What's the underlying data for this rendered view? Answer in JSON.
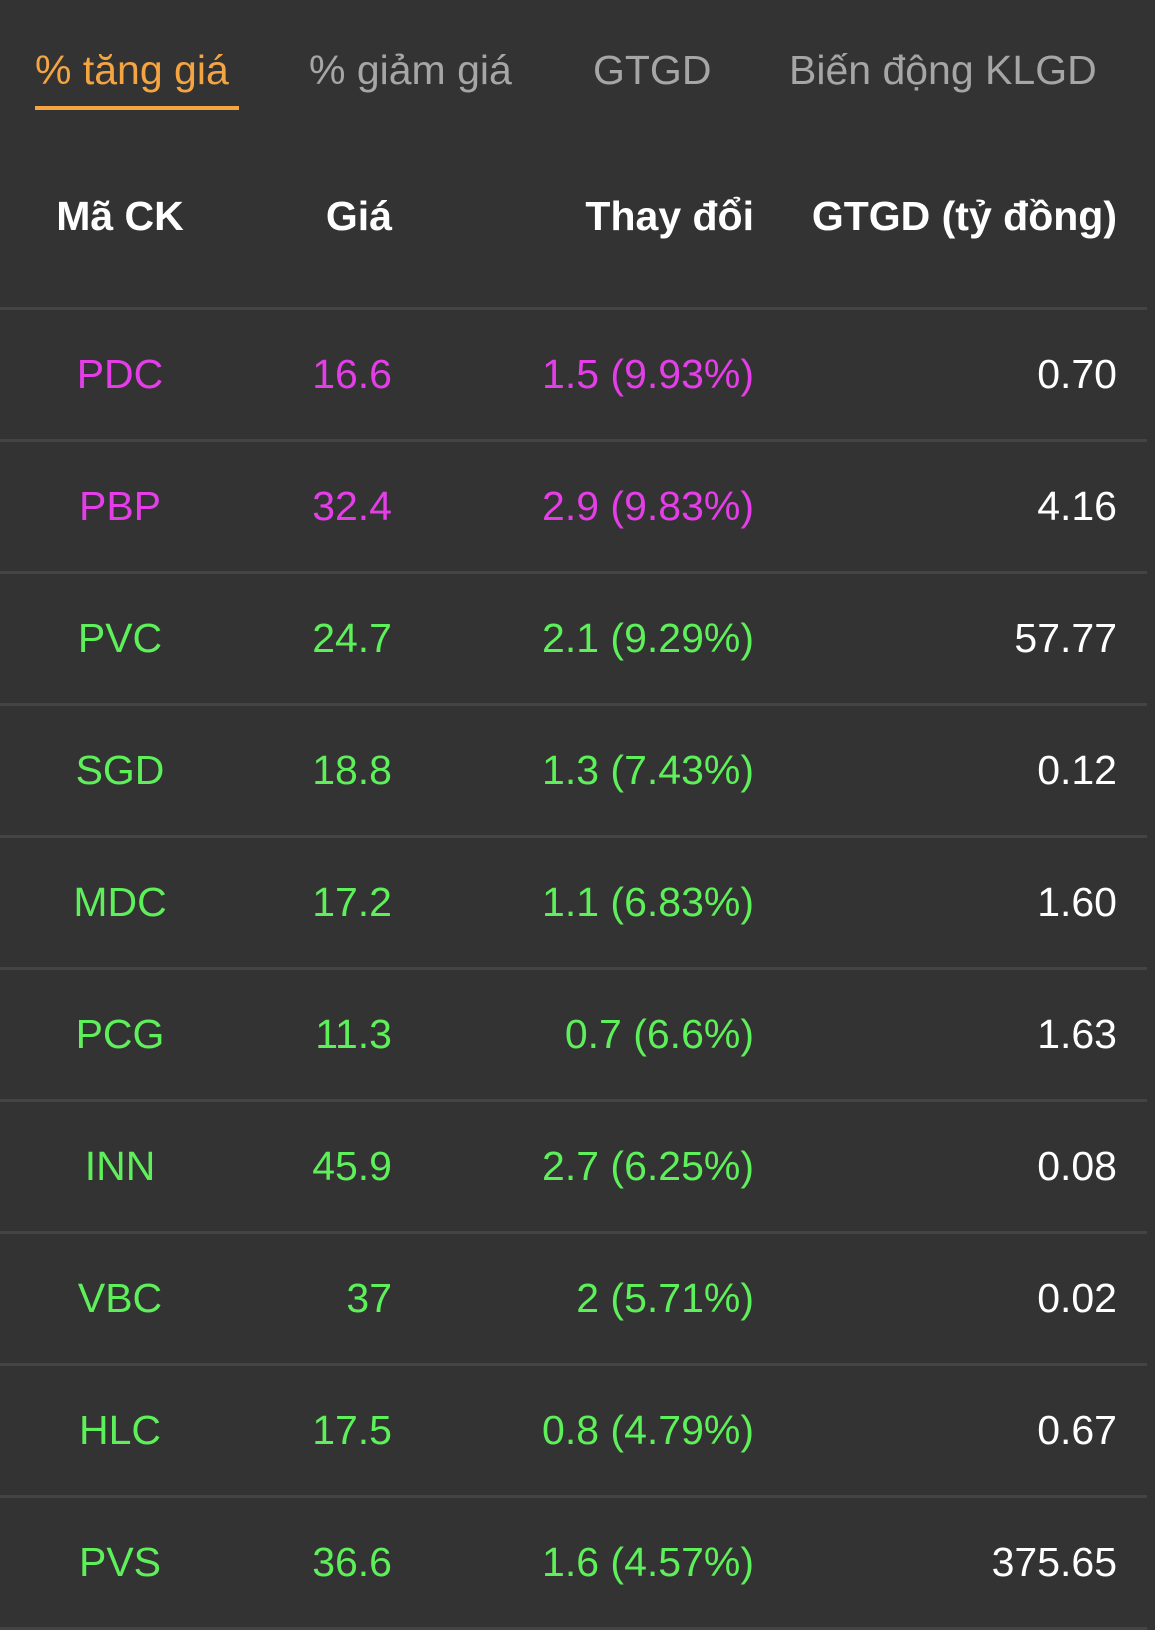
{
  "tabs": [
    {
      "label": "% tăng giá",
      "active": true
    },
    {
      "label": "% giảm giá",
      "active": false
    },
    {
      "label": "GTGD",
      "active": false
    },
    {
      "label": "Biến động KLGD",
      "active": false
    }
  ],
  "columns": {
    "code": "Mã CK",
    "price": "Giá",
    "change": "Thay đổi",
    "value": "GTGD (tỷ đồng)"
  },
  "colors": {
    "ceiling": "#e53ee8",
    "up": "#5ef05a",
    "active_tab": "#f5a442",
    "inactive_tab": "#a6a6a6"
  },
  "rows": [
    {
      "code": "PDC",
      "price": "16.6",
      "change": "1.5 (9.93%)",
      "value": "0.70",
      "status": "ceiling"
    },
    {
      "code": "PBP",
      "price": "32.4",
      "change": "2.9 (9.83%)",
      "value": "4.16",
      "status": "ceiling"
    },
    {
      "code": "PVC",
      "price": "24.7",
      "change": "2.1 (9.29%)",
      "value": "57.77",
      "status": "up"
    },
    {
      "code": "SGD",
      "price": "18.8",
      "change": "1.3 (7.43%)",
      "value": "0.12",
      "status": "up"
    },
    {
      "code": "MDC",
      "price": "17.2",
      "change": "1.1 (6.83%)",
      "value": "1.60",
      "status": "up"
    },
    {
      "code": "PCG",
      "price": "11.3",
      "change": "0.7 (6.6%)",
      "value": "1.63",
      "status": "up"
    },
    {
      "code": "INN",
      "price": "45.9",
      "change": "2.7 (6.25%)",
      "value": "0.08",
      "status": "up"
    },
    {
      "code": "VBC",
      "price": "37",
      "change": "2 (5.71%)",
      "value": "0.02",
      "status": "up"
    },
    {
      "code": "HLC",
      "price": "17.5",
      "change": "0.8 (4.79%)",
      "value": "0.67",
      "status": "up"
    },
    {
      "code": "PVS",
      "price": "36.6",
      "change": "1.6 (4.57%)",
      "value": "375.65",
      "status": "up"
    }
  ]
}
